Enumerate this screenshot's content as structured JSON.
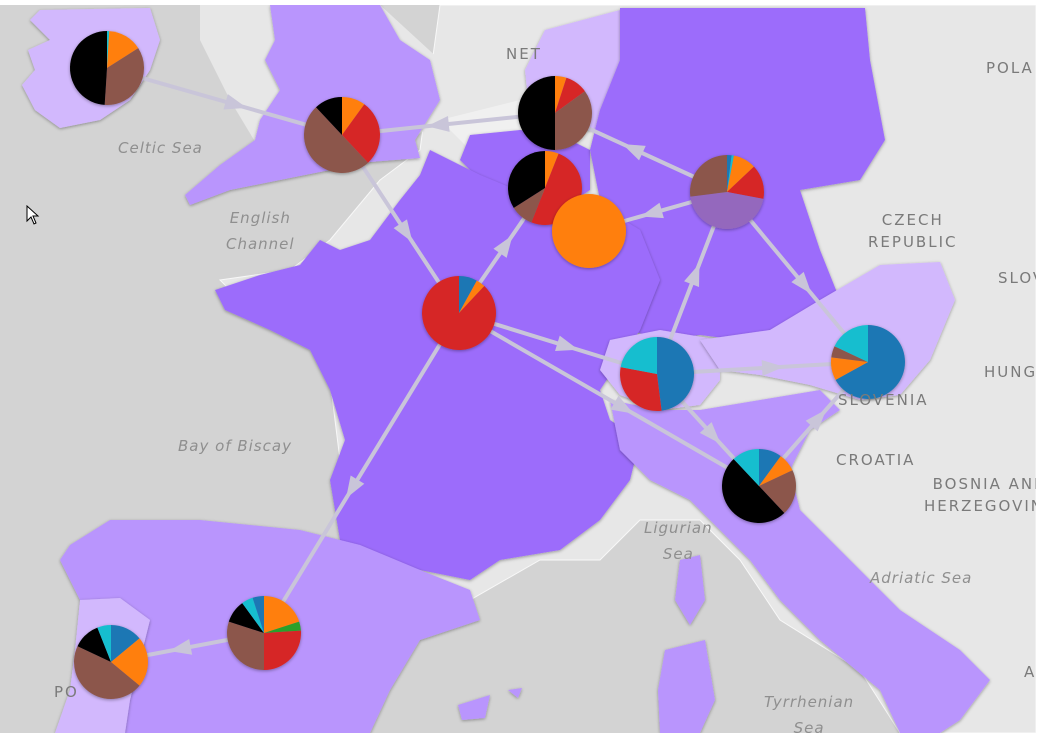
{
  "map": {
    "colors": {
      "sea": "#d3d3d3",
      "land_grey": "#e6e6e6",
      "land_light": "#f3f3f3",
      "region_dark": "#9c6cfb",
      "region_mid": "#b995fd",
      "region_light": "#d2b8fd",
      "flow_arrow": "#c9c5d9"
    },
    "sea_labels": [
      {
        "id": "celtic-sea",
        "text": "Celtic Sea"
      },
      {
        "id": "english-channel",
        "text": "English\nChannel"
      },
      {
        "id": "bay-of-biscay",
        "text": "Bay of Biscay"
      },
      {
        "id": "ligurian-sea",
        "text": "Ligurian\nSea"
      },
      {
        "id": "adriatic-sea",
        "text": "Adriatic Sea"
      },
      {
        "id": "tyrrhenian-sea",
        "text": "Tyrrhenian\nSea"
      }
    ],
    "country_labels": [
      {
        "id": "netherlands",
        "text": "NET"
      },
      {
        "id": "poland",
        "text": "POLA"
      },
      {
        "id": "czech-republic",
        "text": "CZECH\nREPUBLIC"
      },
      {
        "id": "slovakia",
        "text": "SLOV"
      },
      {
        "id": "hungary",
        "text": "HUNGA"
      },
      {
        "id": "slovenia",
        "text": "SLOVENIA"
      },
      {
        "id": "croatia",
        "text": "CROATIA"
      },
      {
        "id": "bosnia",
        "text": "BOSNIA AND\nHERZEGOVINA"
      },
      {
        "id": "portugal",
        "text": "PO"
      },
      {
        "id": "albania",
        "text": "A"
      }
    ],
    "series_colors": {
      "blue": "#1f77b4",
      "orange": "#ff7f0e",
      "red": "#d62728",
      "brown": "#8c564b",
      "black": "#000000",
      "cyan": "#17becf",
      "purple": "#9467bd",
      "green": "#2ca02c"
    },
    "nodes": [
      {
        "id": "ireland",
        "slices": [
          {
            "color": "cyan",
            "value": 0.01
          },
          {
            "color": "orange",
            "value": 0.15
          },
          {
            "color": "brown",
            "value": 0.35
          },
          {
            "color": "black",
            "value": 0.49
          }
        ]
      },
      {
        "id": "uk",
        "slices": [
          {
            "color": "orange",
            "value": 0.1
          },
          {
            "color": "red",
            "value": 0.28
          },
          {
            "color": "brown",
            "value": 0.5
          },
          {
            "color": "black",
            "value": 0.12
          }
        ]
      },
      {
        "id": "netherlands",
        "slices": [
          {
            "color": "orange",
            "value": 0.05
          },
          {
            "color": "red",
            "value": 0.1
          },
          {
            "color": "brown",
            "value": 0.35
          },
          {
            "color": "black",
            "value": 0.5
          }
        ]
      },
      {
        "id": "belgium",
        "slices": [
          {
            "color": "orange",
            "value": 0.06
          },
          {
            "color": "red",
            "value": 0.5
          },
          {
            "color": "brown",
            "value": 0.1
          },
          {
            "color": "black",
            "value": 0.34
          }
        ]
      },
      {
        "id": "luxembourg",
        "slices": [
          {
            "color": "orange",
            "value": 1.0
          }
        ]
      },
      {
        "id": "germany",
        "slices": [
          {
            "color": "blue",
            "value": 0.02
          },
          {
            "color": "cyan",
            "value": 0.01
          },
          {
            "color": "orange",
            "value": 0.1
          },
          {
            "color": "red",
            "value": 0.15
          },
          {
            "color": "purple",
            "value": 0.45
          },
          {
            "color": "brown",
            "value": 0.27
          }
        ]
      },
      {
        "id": "france",
        "slices": [
          {
            "color": "blue",
            "value": 0.08
          },
          {
            "color": "orange",
            "value": 0.04
          },
          {
            "color": "red",
            "value": 0.88
          }
        ]
      },
      {
        "id": "switzerland",
        "slices": [
          {
            "color": "blue",
            "value": 0.48
          },
          {
            "color": "red",
            "value": 0.3
          },
          {
            "color": "cyan",
            "value": 0.22
          }
        ]
      },
      {
        "id": "austria",
        "slices": [
          {
            "color": "blue",
            "value": 0.67
          },
          {
            "color": "orange",
            "value": 0.1
          },
          {
            "color": "brown",
            "value": 0.05
          },
          {
            "color": "cyan",
            "value": 0.18
          }
        ]
      },
      {
        "id": "italy",
        "slices": [
          {
            "color": "blue",
            "value": 0.1
          },
          {
            "color": "orange",
            "value": 0.08
          },
          {
            "color": "brown",
            "value": 0.2
          },
          {
            "color": "black",
            "value": 0.5
          },
          {
            "color": "cyan",
            "value": 0.12
          }
        ]
      },
      {
        "id": "spain",
        "slices": [
          {
            "color": "orange",
            "value": 0.2
          },
          {
            "color": "green",
            "value": 0.04
          },
          {
            "color": "red",
            "value": 0.26
          },
          {
            "color": "brown",
            "value": 0.3
          },
          {
            "color": "black",
            "value": 0.1
          },
          {
            "color": "cyan",
            "value": 0.05
          },
          {
            "color": "blue",
            "value": 0.05
          }
        ]
      },
      {
        "id": "portugal",
        "slices": [
          {
            "color": "blue",
            "value": 0.14
          },
          {
            "color": "orange",
            "value": 0.22
          },
          {
            "color": "brown",
            "value": 0.46
          },
          {
            "color": "black",
            "value": 0.12
          },
          {
            "color": "cyan",
            "value": 0.06
          }
        ]
      }
    ],
    "flows": [
      {
        "from": "ireland",
        "to": "uk"
      },
      {
        "from": "uk",
        "to": "france"
      },
      {
        "from": "netherlands",
        "to": "uk"
      },
      {
        "from": "germany",
        "to": "netherlands"
      },
      {
        "from": "germany",
        "to": "luxembourg"
      },
      {
        "from": "france",
        "to": "belgium"
      },
      {
        "from": "france",
        "to": "switzerland"
      },
      {
        "from": "france",
        "to": "italy"
      },
      {
        "from": "france",
        "to": "spain"
      },
      {
        "from": "switzerland",
        "to": "germany"
      },
      {
        "from": "switzerland",
        "to": "austria"
      },
      {
        "from": "germany",
        "to": "austria"
      },
      {
        "from": "switzerland",
        "to": "italy"
      },
      {
        "from": "italy",
        "to": "austria"
      },
      {
        "from": "spain",
        "to": "portugal"
      }
    ]
  }
}
